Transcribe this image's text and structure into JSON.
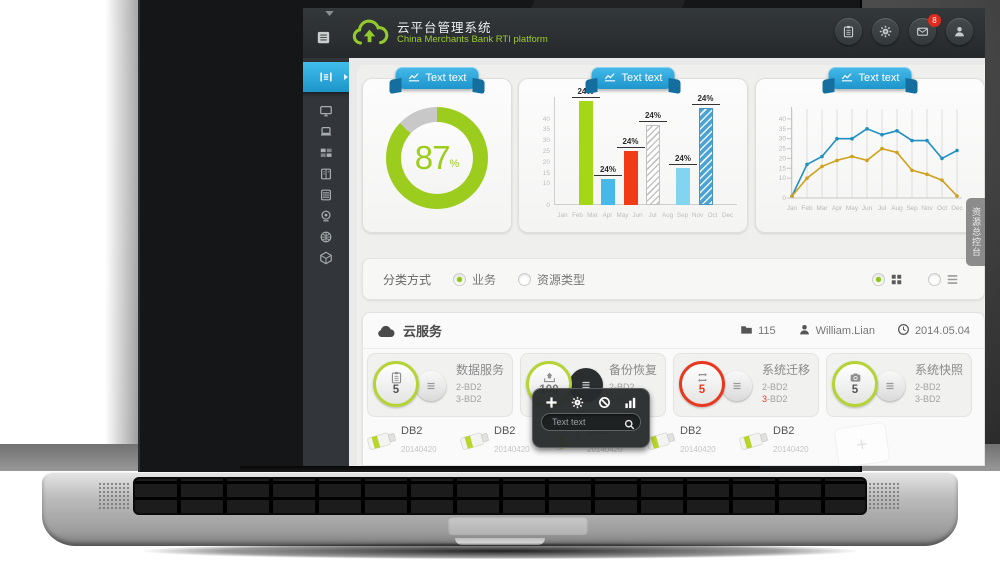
{
  "app": {
    "name": "云平台管理系统",
    "subtitle": "China Merchants Bank RTI platform"
  },
  "header": {
    "actions": [
      {
        "name": "tasks",
        "icon": "clipboard-icon"
      },
      {
        "name": "settings",
        "icon": "gear-icon"
      },
      {
        "name": "messages",
        "icon": "mail-icon",
        "badge": "8"
      },
      {
        "name": "account",
        "icon": "user-icon"
      }
    ]
  },
  "sidebar": {
    "items": [
      {
        "name": "dashboard",
        "icon": "dashboard-icon",
        "active": true
      },
      {
        "name": "monitor",
        "icon": "monitor-icon",
        "active": false
      },
      {
        "name": "hosts",
        "icon": "laptop-icon",
        "active": false
      },
      {
        "name": "resources",
        "icon": "blocks-icon",
        "active": false
      },
      {
        "name": "catalog",
        "icon": "book-icon",
        "active": false
      },
      {
        "name": "servers",
        "icon": "server-icon",
        "active": false
      },
      {
        "name": "devices",
        "icon": "webcam-icon",
        "active": false
      },
      {
        "name": "network",
        "icon": "globe-icon",
        "active": false
      },
      {
        "name": "storage",
        "icon": "cube-icon",
        "active": false
      }
    ]
  },
  "chart_data": [
    {
      "type": "donut",
      "title": "Text text",
      "value": 87,
      "unit": "%",
      "color": "#9ccc1d",
      "track_color": "#c8c8c8"
    },
    {
      "type": "bar",
      "title": "Text text",
      "categories": [
        "Jan",
        "Feb",
        "Mar",
        "Apr",
        "May",
        "Jun",
        "Jul",
        "Aug",
        "Sep",
        "Nov",
        "Oct",
        "Dec"
      ],
      "yticks": [
        40,
        35,
        30,
        25,
        20,
        15,
        10,
        0
      ],
      "ylim": [
        0,
        50
      ],
      "bars": [
        {
          "slot": 1.5,
          "value": 48,
          "label": "24%",
          "color": "#a4d816",
          "pattern": "solid"
        },
        {
          "slot": 3,
          "value": 12,
          "label": "24%",
          "color": "#47b9e9",
          "pattern": "solid"
        },
        {
          "slot": 4.5,
          "value": 25,
          "label": "24%",
          "color": "#f03c16",
          "pattern": "solid"
        },
        {
          "slot": 6,
          "value": 37,
          "label": "24%",
          "color": "#ffffff",
          "pattern": "hatch-gray"
        },
        {
          "slot": 8,
          "value": 17,
          "label": "24%",
          "color": "#83d4f1",
          "pattern": "solid"
        },
        {
          "slot": 9.5,
          "value": 45,
          "label": "24%",
          "color": "#4ba2d3",
          "pattern": "hatch-blue"
        }
      ]
    },
    {
      "type": "line",
      "title": "Text text",
      "categories": [
        "Jan",
        "Feb",
        "Mar",
        "Apr",
        "May",
        "Jun",
        "Jul",
        "Aug",
        "Sep",
        "Nov",
        "Oct",
        "Dec"
      ],
      "yticks": [
        40,
        35,
        30,
        25,
        20,
        15,
        10,
        0
      ],
      "ylim": [
        0,
        45
      ],
      "grid": "vertical",
      "series": [
        {
          "name": "series-blue",
          "color": "#2090c2",
          "values": [
            1,
            17,
            21,
            30,
            30,
            35,
            32,
            34,
            29,
            29,
            20,
            24
          ]
        },
        {
          "name": "series-gold",
          "color": "#cfa11b",
          "values": [
            1,
            10,
            16,
            19,
            21,
            19,
            25,
            23,
            14,
            12,
            9,
            1
          ]
        }
      ]
    }
  ],
  "side_tab": {
    "label": "资源总控台"
  },
  "filter": {
    "label": "分类方式",
    "options": [
      {
        "label": "业务",
        "selected": true
      },
      {
        "label": "资源类型",
        "selected": false
      }
    ],
    "views": [
      {
        "name": "grid",
        "icon": "grid-view-icon",
        "selected": true
      },
      {
        "name": "list",
        "icon": "list-view-icon",
        "selected": false
      }
    ]
  },
  "section": {
    "title": "云服务",
    "folder_count": "115",
    "user": "William.Lian",
    "date": "2014.05.04"
  },
  "services": [
    {
      "title": "数据服务",
      "count": "5",
      "icon": "clipboard-icon",
      "accent": "#b5d334",
      "count_color": "#555555",
      "lines": [
        "2-BD2",
        "3-BD2"
      ],
      "menu_dark": false,
      "red_line": -1
    },
    {
      "title": "备份恢复",
      "count": "100",
      "icon": "upload-icon",
      "accent": "#b5d334",
      "count_color": "#777777",
      "lines": [
        "2-BD2",
        "3-BD2"
      ],
      "menu_dark": true,
      "red_line": -1
    },
    {
      "title": "系统迁移",
      "count": "5",
      "icon": "migrate-icon",
      "accent": "#e6391f",
      "count_color": "#e6391f",
      "lines": [
        "2-BD2",
        "3-BD2"
      ],
      "menu_dark": false,
      "red_line": 1
    },
    {
      "title": "系统快照",
      "count": "5",
      "icon": "camera-icon",
      "accent": "#b5d334",
      "count_color": "#555555",
      "lines": [
        "2-BD2",
        "3-BD2"
      ],
      "menu_dark": false,
      "red_line": -1
    }
  ],
  "toolbar": {
    "icons": [
      {
        "name": "add",
        "icon": "plus-icon"
      },
      {
        "name": "settings",
        "icon": "gear-icon"
      },
      {
        "name": "disable",
        "icon": "block-icon"
      },
      {
        "name": "stats",
        "icon": "stats-icon"
      }
    ],
    "search_placeholder": "Text text"
  },
  "storage": {
    "items": [
      {
        "label": "DB2",
        "date": "20140420"
      },
      {
        "label": "DB2",
        "date": "20140420"
      },
      {
        "label": "DB2",
        "date": "20140420"
      },
      {
        "label": "DB2",
        "date": "20140420"
      },
      {
        "label": "DB2",
        "date": "20140420"
      }
    ],
    "add_label": "+"
  }
}
